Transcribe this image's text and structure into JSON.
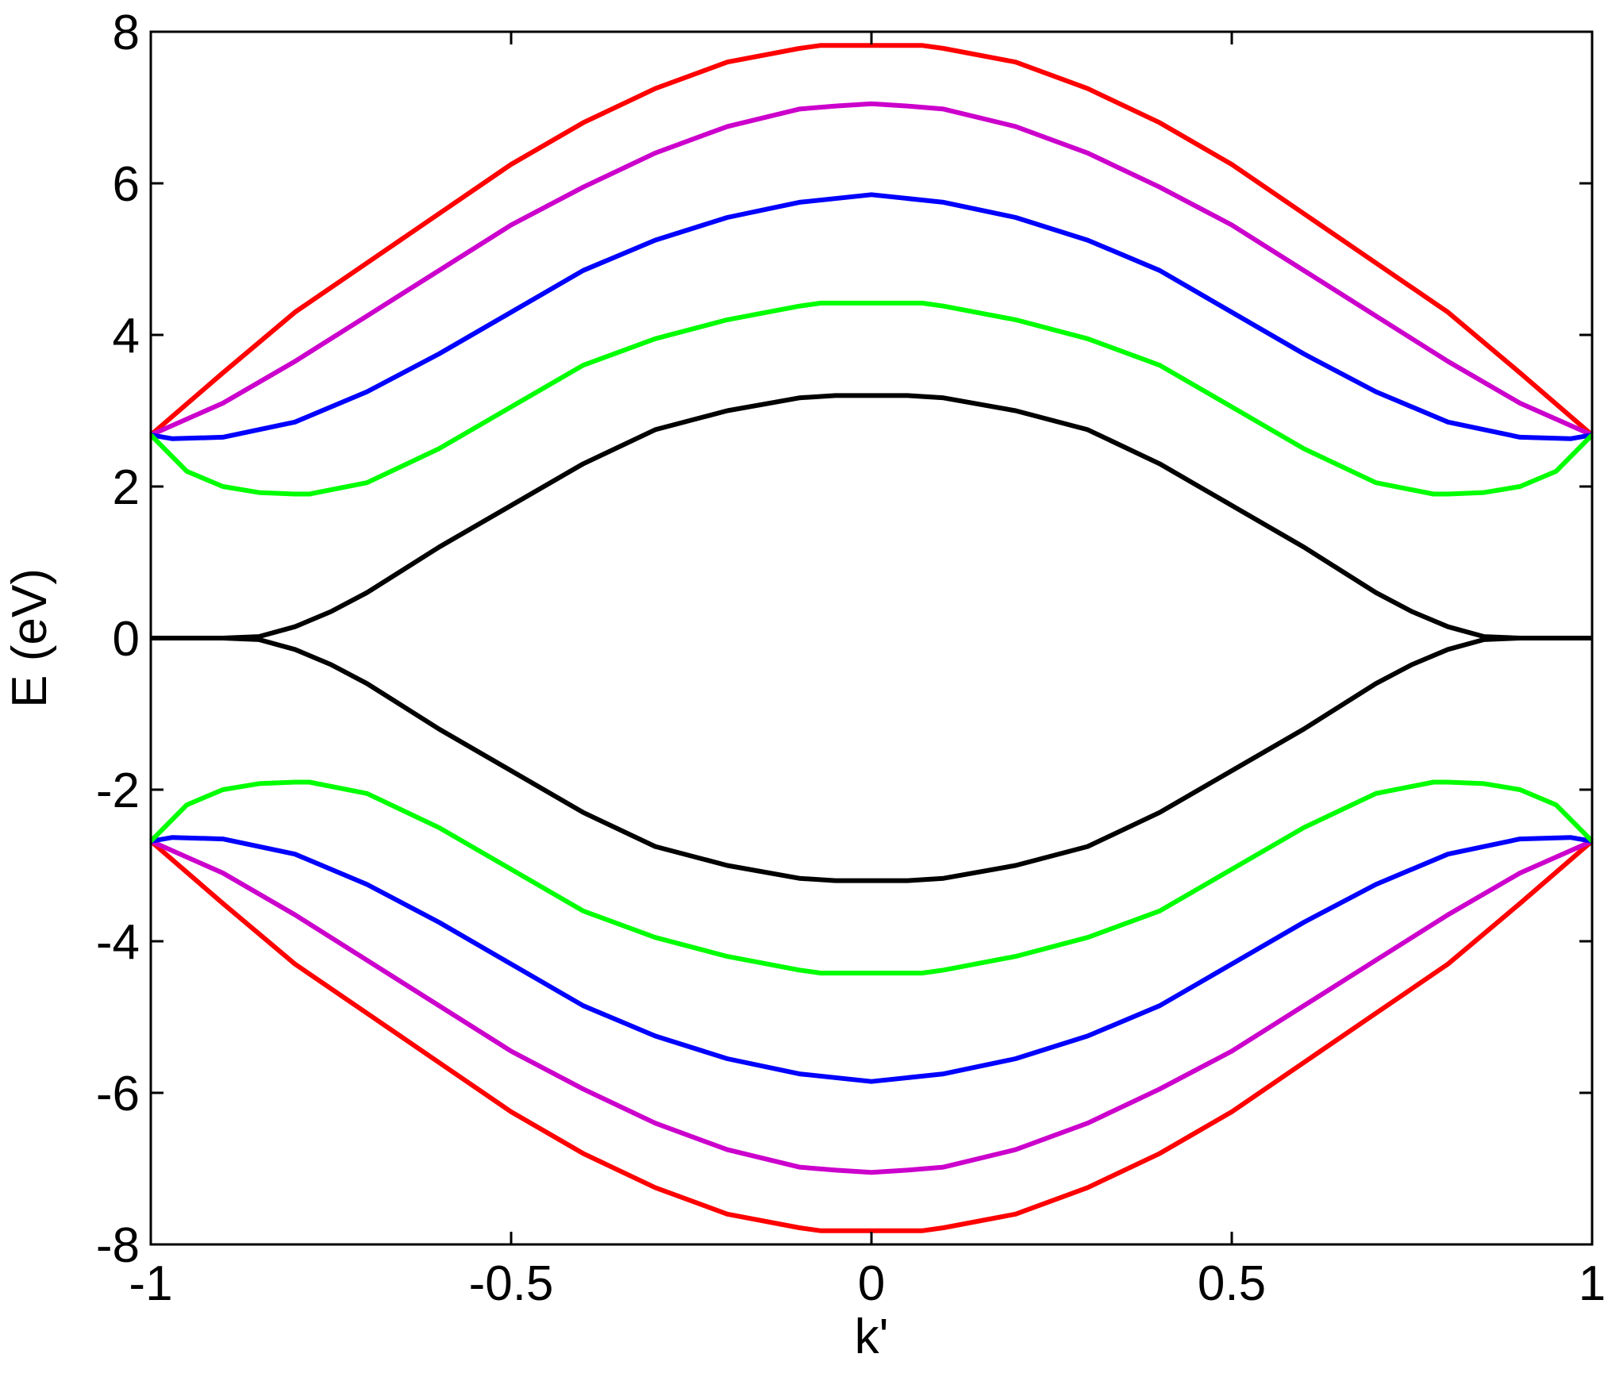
{
  "chart_data": {
    "type": "line",
    "title": "",
    "xlabel": "k'",
    "ylabel": "E (eV)",
    "xlim": [
      -1,
      1
    ],
    "ylim": [
      -8,
      8
    ],
    "xticks": [
      -1,
      -0.5,
      0,
      0.5,
      1
    ],
    "yticks": [
      -8,
      -6,
      -4,
      -2,
      0,
      2,
      4,
      6,
      8
    ],
    "xtick_labels": [
      "-1",
      "-0.5",
      "0",
      "0.5",
      "1"
    ],
    "ytick_labels": [
      "-8",
      "-6",
      "-4",
      "-2",
      "0",
      "2",
      "4",
      "6",
      "8"
    ],
    "grid": false,
    "legend": "none",
    "series": [
      {
        "color": "#ff0000",
        "band": "upper",
        "x": [
          -1,
          -0.9,
          -0.8,
          -0.7,
          -0.6,
          -0.5,
          -0.4,
          -0.3,
          -0.2,
          -0.1,
          -0.07,
          0,
          0.07,
          0.1,
          0.2,
          0.3,
          0.4,
          0.5,
          0.6,
          0.7,
          0.8,
          0.9,
          1
        ],
        "y": [
          2.68,
          3.5,
          4.3,
          4.95,
          5.6,
          6.25,
          6.8,
          7.25,
          7.6,
          7.78,
          7.82,
          7.82,
          7.82,
          7.78,
          7.6,
          7.25,
          6.8,
          6.25,
          5.6,
          4.95,
          4.3,
          3.5,
          2.68
        ]
      },
      {
        "color": "#ff0000",
        "band": "lower",
        "x": [
          -1,
          -0.9,
          -0.8,
          -0.7,
          -0.6,
          -0.5,
          -0.4,
          -0.3,
          -0.2,
          -0.1,
          -0.07,
          0,
          0.07,
          0.1,
          0.2,
          0.3,
          0.4,
          0.5,
          0.6,
          0.7,
          0.8,
          0.9,
          1
        ],
        "y": [
          -2.68,
          -3.5,
          -4.3,
          -4.95,
          -5.6,
          -6.25,
          -6.8,
          -7.25,
          -7.6,
          -7.78,
          -7.82,
          -7.82,
          -7.82,
          -7.78,
          -7.6,
          -7.25,
          -6.8,
          -6.25,
          -5.6,
          -4.95,
          -4.3,
          -3.5,
          -2.68
        ]
      },
      {
        "color": "#cc00cc",
        "band": "upper",
        "x": [
          -1,
          -0.9,
          -0.8,
          -0.7,
          -0.6,
          -0.5,
          -0.4,
          -0.3,
          -0.2,
          -0.1,
          -0.05,
          0,
          0.05,
          0.1,
          0.2,
          0.3,
          0.4,
          0.5,
          0.6,
          0.7,
          0.8,
          0.9,
          1
        ],
        "y": [
          2.68,
          3.1,
          3.65,
          4.25,
          4.85,
          5.45,
          5.95,
          6.4,
          6.75,
          6.98,
          7.02,
          7.05,
          7.02,
          6.98,
          6.75,
          6.4,
          5.95,
          5.45,
          4.85,
          4.25,
          3.65,
          3.1,
          2.68
        ]
      },
      {
        "color": "#cc00cc",
        "band": "lower",
        "x": [
          -1,
          -0.9,
          -0.8,
          -0.7,
          -0.6,
          -0.5,
          -0.4,
          -0.3,
          -0.2,
          -0.1,
          -0.05,
          0,
          0.05,
          0.1,
          0.2,
          0.3,
          0.4,
          0.5,
          0.6,
          0.7,
          0.8,
          0.9,
          1
        ],
        "y": [
          -2.68,
          -3.1,
          -3.65,
          -4.25,
          -4.85,
          -5.45,
          -5.95,
          -6.4,
          -6.75,
          -6.98,
          -7.02,
          -7.05,
          -7.02,
          -6.98,
          -6.75,
          -6.4,
          -5.95,
          -5.45,
          -4.85,
          -4.25,
          -3.65,
          -3.1,
          -2.68
        ]
      },
      {
        "color": "#0000ff",
        "band": "upper",
        "x": [
          -1,
          -0.97,
          -0.9,
          -0.8,
          -0.7,
          -0.6,
          -0.5,
          -0.4,
          -0.3,
          -0.2,
          -0.1,
          0,
          0.1,
          0.2,
          0.3,
          0.4,
          0.5,
          0.6,
          0.7,
          0.8,
          0.9,
          0.97,
          1
        ],
        "y": [
          2.68,
          2.63,
          2.65,
          2.85,
          3.25,
          3.75,
          4.3,
          4.85,
          5.25,
          5.55,
          5.75,
          5.85,
          5.75,
          5.55,
          5.25,
          4.85,
          4.3,
          3.75,
          3.25,
          2.85,
          2.65,
          2.63,
          2.68
        ]
      },
      {
        "color": "#0000ff",
        "band": "lower",
        "x": [
          -1,
          -0.97,
          -0.9,
          -0.8,
          -0.7,
          -0.6,
          -0.5,
          -0.4,
          -0.3,
          -0.2,
          -0.1,
          0,
          0.1,
          0.2,
          0.3,
          0.4,
          0.5,
          0.6,
          0.7,
          0.8,
          0.9,
          0.97,
          1
        ],
        "y": [
          -2.68,
          -2.63,
          -2.65,
          -2.85,
          -3.25,
          -3.75,
          -4.3,
          -4.85,
          -5.25,
          -5.55,
          -5.75,
          -5.85,
          -5.75,
          -5.55,
          -5.25,
          -4.85,
          -4.3,
          -3.75,
          -3.25,
          -2.85,
          -2.65,
          -2.63,
          -2.68
        ]
      },
      {
        "color": "#00ff00",
        "band": "upper",
        "x": [
          -1,
          -0.95,
          -0.9,
          -0.85,
          -0.8,
          -0.78,
          -0.7,
          -0.6,
          -0.5,
          -0.4,
          -0.3,
          -0.2,
          -0.1,
          -0.07,
          0,
          0.07,
          0.1,
          0.2,
          0.3,
          0.4,
          0.5,
          0.6,
          0.7,
          0.78,
          0.8,
          0.85,
          0.9,
          0.95,
          1
        ],
        "y": [
          2.68,
          2.2,
          2.0,
          1.92,
          1.9,
          1.9,
          2.05,
          2.5,
          3.05,
          3.6,
          3.95,
          4.2,
          4.38,
          4.42,
          4.42,
          4.42,
          4.38,
          4.2,
          3.95,
          3.6,
          3.05,
          2.5,
          2.05,
          1.9,
          1.9,
          1.92,
          2.0,
          2.2,
          2.68
        ]
      },
      {
        "color": "#00ff00",
        "band": "lower",
        "x": [
          -1,
          -0.95,
          -0.9,
          -0.85,
          -0.8,
          -0.78,
          -0.7,
          -0.6,
          -0.5,
          -0.4,
          -0.3,
          -0.2,
          -0.1,
          -0.07,
          0,
          0.07,
          0.1,
          0.2,
          0.3,
          0.4,
          0.5,
          0.6,
          0.7,
          0.78,
          0.8,
          0.85,
          0.9,
          0.95,
          1
        ],
        "y": [
          -2.68,
          -2.2,
          -2.0,
          -1.92,
          -1.9,
          -1.9,
          -2.05,
          -2.5,
          -3.05,
          -3.6,
          -3.95,
          -4.2,
          -4.38,
          -4.42,
          -4.42,
          -4.42,
          -4.38,
          -4.2,
          -3.95,
          -3.6,
          -3.05,
          -2.5,
          -2.05,
          -1.9,
          -1.9,
          -1.92,
          -2.0,
          -2.2,
          -2.68
        ]
      },
      {
        "color": "#000000",
        "band": "upper",
        "x": [
          -1,
          -0.9,
          -0.85,
          -0.8,
          -0.75,
          -0.7,
          -0.6,
          -0.5,
          -0.4,
          -0.3,
          -0.2,
          -0.1,
          -0.05,
          0,
          0.05,
          0.1,
          0.2,
          0.3,
          0.4,
          0.5,
          0.6,
          0.7,
          0.75,
          0.8,
          0.85,
          0.9,
          1
        ],
        "y": [
          0,
          0,
          0.02,
          0.15,
          0.35,
          0.6,
          1.2,
          1.75,
          2.3,
          2.75,
          3.0,
          3.17,
          3.2,
          3.2,
          3.2,
          3.17,
          3.0,
          2.75,
          2.3,
          1.75,
          1.2,
          0.6,
          0.35,
          0.15,
          0.02,
          0,
          0
        ]
      },
      {
        "color": "#000000",
        "band": "lower",
        "x": [
          -1,
          -0.9,
          -0.85,
          -0.8,
          -0.75,
          -0.7,
          -0.6,
          -0.5,
          -0.4,
          -0.3,
          -0.2,
          -0.1,
          -0.05,
          0,
          0.05,
          0.1,
          0.2,
          0.3,
          0.4,
          0.5,
          0.6,
          0.7,
          0.75,
          0.8,
          0.85,
          0.9,
          1
        ],
        "y": [
          0,
          0,
          -0.02,
          -0.15,
          -0.35,
          -0.6,
          -1.2,
          -1.75,
          -2.3,
          -2.75,
          -3.0,
          -3.17,
          -3.2,
          -3.2,
          -3.2,
          -3.17,
          -3.0,
          -2.75,
          -2.3,
          -1.75,
          -1.2,
          -0.6,
          -0.35,
          -0.15,
          -0.02,
          0,
          0
        ]
      }
    ]
  }
}
